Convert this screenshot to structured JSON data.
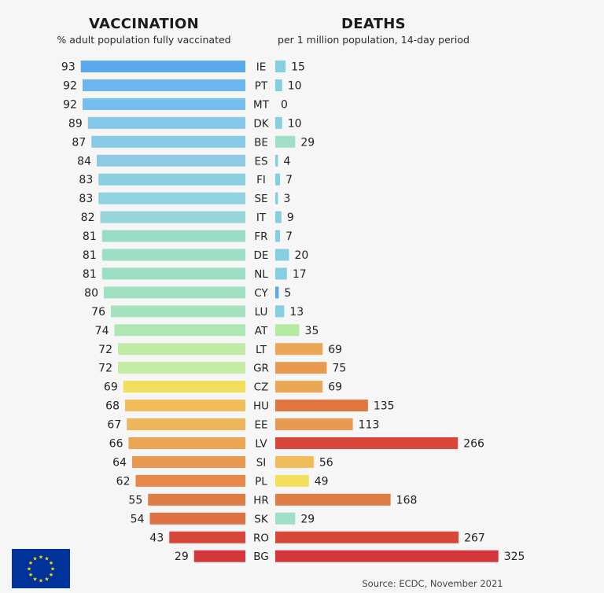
{
  "headers": {
    "vacc_title": "VACCINATION",
    "vacc_subtitle": "% adult population fully vaccinated",
    "death_title": "DEATHS",
    "death_subtitle": "per 1 million population, 14-day period"
  },
  "source": "Source: ECDC, November 2021",
  "chart_data": [
    {
      "type": "bar",
      "title": "VACCINATION",
      "subtitle": "% adult population fully vaccinated",
      "orientation": "horizontal",
      "direction": "right-to-left",
      "categories": [
        "IE",
        "PT",
        "MT",
        "DK",
        "BE",
        "ES",
        "FI",
        "SE",
        "IT",
        "FR",
        "DE",
        "NL",
        "CY",
        "LU",
        "AT",
        "LT",
        "GR",
        "CZ",
        "HU",
        "EE",
        "LV",
        "SI",
        "PL",
        "HR",
        "SK",
        "RO",
        "BG"
      ],
      "values": [
        93,
        92,
        92,
        89,
        87,
        84,
        83,
        83,
        82,
        81,
        81,
        81,
        80,
        76,
        74,
        72,
        72,
        69,
        68,
        67,
        66,
        64,
        62,
        55,
        54,
        43,
        29
      ],
      "colors": [
        "#5aa9ec",
        "#6bb6ef",
        "#75bff0",
        "#85c8ea",
        "#88cbe6",
        "#8ccbe3",
        "#8ccfe1",
        "#90d2df",
        "#96d6d8",
        "#99dcc8",
        "#9cdfc4",
        "#9cdfc4",
        "#a0e1c2",
        "#a6e2c0",
        "#aee6b4",
        "#c0eaa6",
        "#c4eca4",
        "#f3de5c",
        "#f0bd5a",
        "#eeb55a",
        "#eaa654",
        "#e89a50",
        "#e5884a",
        "#e07c46",
        "#de7243",
        "#d9463a",
        "#d3373c"
      ],
      "grid": false
    },
    {
      "type": "bar",
      "title": "DEATHS",
      "subtitle": "per 1 million population, 14-day period",
      "orientation": "horizontal",
      "direction": "left-to-right",
      "categories": [
        "IE",
        "PT",
        "MT",
        "DK",
        "BE",
        "ES",
        "FI",
        "SE",
        "IT",
        "FR",
        "DE",
        "NL",
        "CY",
        "LU",
        "AT",
        "LT",
        "GR",
        "CZ",
        "HU",
        "EE",
        "LV",
        "SI",
        "PL",
        "HR",
        "SK",
        "RO",
        "BG"
      ],
      "values": [
        15,
        10,
        0,
        10,
        29,
        4,
        7,
        3,
        9,
        7,
        20,
        17,
        5,
        13,
        35,
        69,
        75,
        69,
        135,
        113,
        266,
        56,
        49,
        168,
        29,
        267,
        325
      ],
      "colors": [
        "#86cfe2",
        "#86cfe2",
        "#86cfe2",
        "#86cfe2",
        "#a0e0c6",
        "#86cfe2",
        "#86cfe2",
        "#86cfe2",
        "#86cfe2",
        "#86cfe2",
        "#86cfe2",
        "#86cfe2",
        "#5aa9ec",
        "#86cfe2",
        "#b6eaa4",
        "#eaa654",
        "#e89a50",
        "#eaa654",
        "#e0763e",
        "#e89a50",
        "#d9463a",
        "#f0bd5a",
        "#f3df5c",
        "#e07c46",
        "#a0e0c6",
        "#d9463a",
        "#d3373c"
      ],
      "grid": false
    }
  ],
  "footer": {
    "eu_flag_color": "#003399",
    "eu_star_color": "#ffdd00"
  }
}
